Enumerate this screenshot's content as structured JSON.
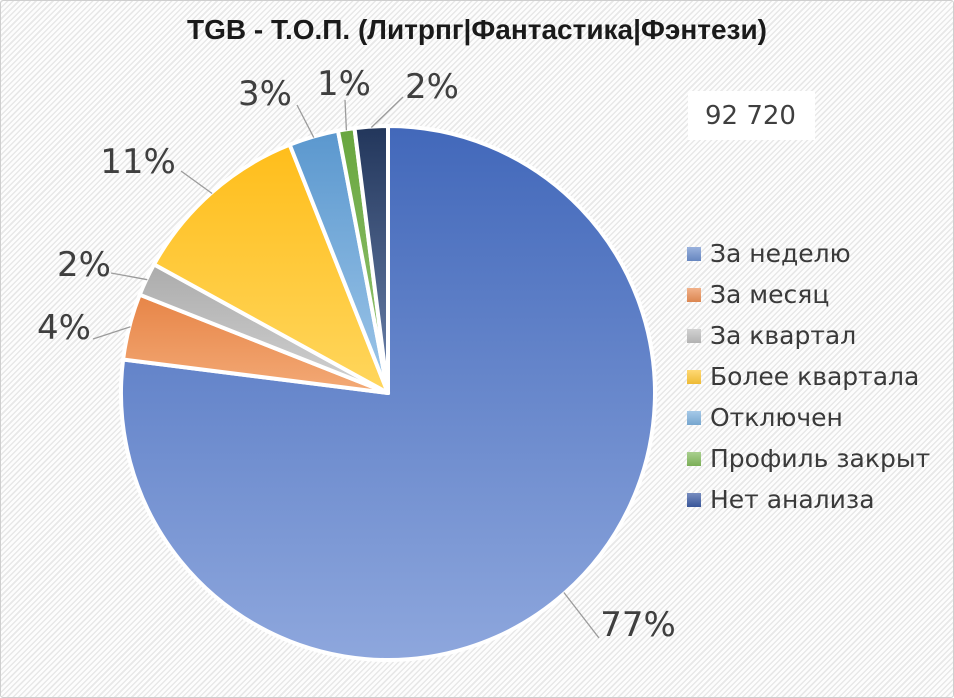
{
  "chart_data": {
    "type": "pie",
    "title": "TGB - Т.О.П. (Литрпг|Фантастика|Фэнтези)",
    "annotation": "92 720",
    "legend_position": "right",
    "data_labels": "percent",
    "slices": [
      {
        "label": "За неделю",
        "percent": 77,
        "color": "#6E90CE",
        "color_dark": "#4268BA",
        "color_light": "#8EA7DD"
      },
      {
        "label": "За месяц",
        "percent": 4,
        "color": "#EC9057",
        "color_dark": "#E57F40",
        "color_light": "#F4AC79"
      },
      {
        "label": "За квартал",
        "percent": 2,
        "color": "#BFBFBF",
        "color_dark": "#A8A8A8",
        "color_light": "#D4D4D4"
      },
      {
        "label": "Более квартала",
        "percent": 11,
        "color": "#FFC839",
        "color_dark": "#FFBE1C",
        "color_light": "#FFD75F"
      },
      {
        "label": "Отключен",
        "percent": 3,
        "color": "#7FB2DE",
        "color_dark": "#5A97CE",
        "color_light": "#A0C8EA"
      },
      {
        "label": "Профиль закрыт",
        "percent": 1,
        "color": "#84BB5E",
        "color_dark": "#68A63E",
        "color_light": "#97C676"
      },
      {
        "label": "Нет анализа",
        "percent": 2,
        "color": "#3D5CA4",
        "color_dark": "#22365B",
        "color_light": "#6F85AE"
      }
    ]
  }
}
